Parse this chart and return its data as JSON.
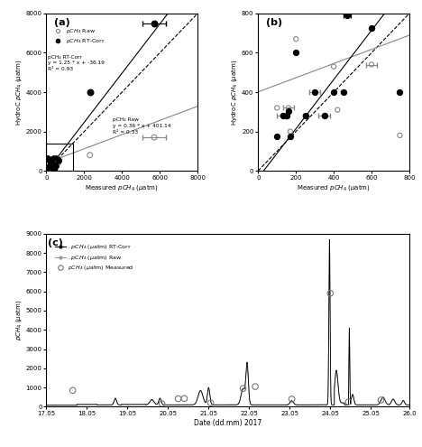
{
  "panel_a": {
    "title": "(a)",
    "xlabel": "Measured ρCH₄ (μatm)",
    "ylabel": "HydroC ρCH₄ (μatm)",
    "xlim": [
      0,
      8000
    ],
    "ylim": [
      0,
      8000
    ],
    "xticks": [
      0,
      2000,
      4000,
      6000,
      8000
    ],
    "yticks": [
      0,
      2000,
      4000,
      6000,
      8000
    ],
    "line_raw_slope": 0.36,
    "line_raw_intercept": 401.14,
    "line_rt_slope": 1.25,
    "line_rt_intercept": -36.19,
    "annot_rt": "pCH₄ RT-Corr\ny = 1.25 * x + -36.19\nR² = 0.93",
    "annot_raw": "pCH₄ Raw\ny = 0.36 * x + 401.14\nR² = 0.33"
  },
  "panel_b": {
    "title": "(b)",
    "xlabel": "Measured ρCH₄ (μatm)",
    "ylabel": "HydroC ρCH₄ (μatm)",
    "xlim": [
      0,
      800
    ],
    "ylim": [
      0,
      800
    ],
    "xticks": [
      0,
      200,
      400,
      600,
      800
    ],
    "yticks": [
      0,
      200,
      400,
      600,
      800
    ],
    "raw_points": [
      [
        100,
        320
      ],
      [
        130,
        280
      ],
      [
        150,
        275
      ],
      [
        160,
        320
      ],
      [
        170,
        200
      ],
      [
        200,
        670
      ],
      [
        250,
        280
      ],
      [
        300,
        400
      ],
      [
        350,
        280
      ],
      [
        400,
        530
      ],
      [
        420,
        310
      ],
      [
        450,
        400
      ],
      [
        600,
        540
      ],
      [
        750,
        180
      ]
    ],
    "raw_xerr": [
      [
        0,
        0
      ],
      [
        30,
        30
      ],
      [
        0,
        0
      ],
      [
        30,
        30
      ],
      [
        0,
        0
      ],
      [
        0,
        0
      ],
      [
        0,
        0
      ],
      [
        30,
        30
      ],
      [
        30,
        30
      ],
      [
        0,
        0
      ],
      [
        0,
        0
      ],
      [
        0,
        0
      ],
      [
        30,
        30
      ],
      [
        0,
        0
      ]
    ],
    "rt_points": [
      [
        100,
        175
      ],
      [
        130,
        280
      ],
      [
        150,
        280
      ],
      [
        160,
        305
      ],
      [
        170,
        175
      ],
      [
        200,
        600
      ],
      [
        250,
        280
      ],
      [
        300,
        400
      ],
      [
        350,
        280
      ],
      [
        400,
        400
      ],
      [
        450,
        400
      ],
      [
        470,
        790
      ],
      [
        600,
        725
      ],
      [
        750,
        400
      ]
    ],
    "rt_xerr": [
      [
        0,
        0
      ],
      [
        0,
        0
      ],
      [
        0,
        0
      ],
      [
        0,
        0
      ],
      [
        0,
        0
      ],
      [
        0,
        0
      ],
      [
        0,
        0
      ],
      [
        0,
        0
      ],
      [
        0,
        0
      ],
      [
        0,
        0
      ],
      [
        0,
        0
      ],
      [
        20,
        20
      ],
      [
        0,
        0
      ],
      [
        0,
        0
      ]
    ],
    "line_raw_slope": 0.36,
    "line_raw_intercept": 401.14,
    "line_rt_slope": 1.25,
    "line_rt_intercept": -36.19
  },
  "panel_c": {
    "title": "(c)",
    "xlabel": "Date (dd.mm) 2017",
    "ylabel": "ρCH₄ (μatm)",
    "xlim": [
      17.05,
      26.0
    ],
    "ylim": [
      0,
      9000
    ],
    "yticks": [
      0,
      1000,
      2000,
      3000,
      4000,
      5000,
      6000,
      7000,
      8000,
      9000
    ],
    "xticks": [
      17.05,
      18.05,
      19.05,
      20.05,
      21.05,
      22.05,
      23.05,
      24.05,
      25.05,
      26.0
    ],
    "xticklabels": [
      "17.05",
      "18.05",
      "19.05",
      "20.05",
      "21.05",
      "22.05",
      "23.05",
      "24.05",
      "25.05",
      "26.0"
    ],
    "measured_x": [
      17.7,
      19.9,
      20.3,
      20.45,
      21.1,
      21.9,
      22.2,
      23.1,
      24.05,
      24.5,
      25.3
    ],
    "measured_y": [
      850,
      160,
      420,
      430,
      200,
      950,
      1050,
      400,
      5900,
      250,
      350
    ],
    "legend_rt": "ρCH₄ (μatm) RT-Corr",
    "legend_raw": "ρCH₄ (μatm) Raw",
    "legend_meas": "ρCH₄ (μatm) Measured"
  },
  "colors": {
    "raw": "#888888",
    "rt_corr": "#000000",
    "measured": "#888888",
    "line_1to1": "#000000",
    "line_raw": "#888888",
    "line_rt": "#000000"
  }
}
